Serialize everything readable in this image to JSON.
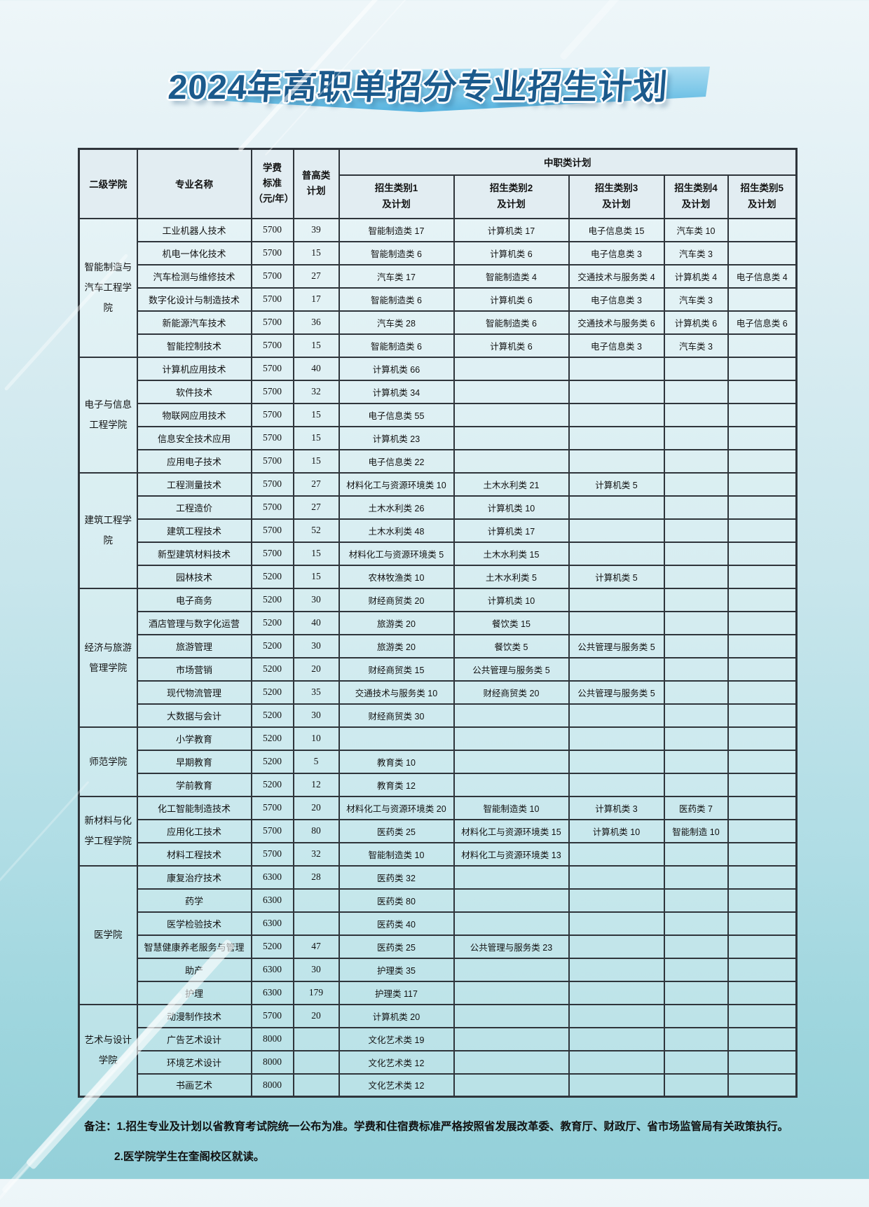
{
  "title": "2024年高职单招分专业招生计划",
  "colors": {
    "title_text": "#1b5a8c",
    "banner_top": "#a2d8ef",
    "banner_bottom": "#5cb6e0",
    "table_border": "#2f353b",
    "page_bg_top": "#eef6f9",
    "page_bg_bottom": "#94d0d9"
  },
  "table": {
    "header": {
      "college": "二级学院",
      "major": "专业名称",
      "tuition": "学费\n标准\n（元/年）",
      "general": "普高类\n计划",
      "vocational": "中职类计划",
      "categories": [
        "招生类别1\n及计划",
        "招生类别2\n及计划",
        "招生类别3\n及计划",
        "招生类别4\n及计划",
        "招生类别5\n及计划"
      ]
    },
    "colleges": [
      {
        "name": "智能制造与汽车工程学院",
        "rows": [
          {
            "major": "工业机器人技术",
            "tuition": "5700",
            "general": "39",
            "cats": [
              "智能制造类 17",
              "计算机类 17",
              "电子信息类 15",
              "汽车类 10",
              ""
            ]
          },
          {
            "major": "机电一体化技术",
            "tuition": "5700",
            "general": "15",
            "cats": [
              "智能制造类 6",
              "计算机类 6",
              "电子信息类 3",
              "汽车类 3",
              ""
            ]
          },
          {
            "major": "汽车检测与维修技术",
            "tuition": "5700",
            "general": "27",
            "cats": [
              "汽车类 17",
              "智能制造类 4",
              "交通技术与服务类 4",
              "计算机类 4",
              "电子信息类 4"
            ]
          },
          {
            "major": "数字化设计与制造技术",
            "tuition": "5700",
            "general": "17",
            "cats": [
              "智能制造类 6",
              "计算机类 6",
              "电子信息类 3",
              "汽车类 3",
              ""
            ]
          },
          {
            "major": "新能源汽车技术",
            "tuition": "5700",
            "general": "36",
            "cats": [
              "汽车类 28",
              "智能制造类 6",
              "交通技术与服务类 6",
              "计算机类 6",
              "电子信息类 6"
            ]
          },
          {
            "major": "智能控制技术",
            "tuition": "5700",
            "general": "15",
            "cats": [
              "智能制造类 6",
              "计算机类 6",
              "电子信息类 3",
              "汽车类 3",
              ""
            ]
          }
        ]
      },
      {
        "name": "电子与信息工程学院",
        "rows": [
          {
            "major": "计算机应用技术",
            "tuition": "5700",
            "general": "40",
            "cats": [
              "计算机类 66",
              "",
              "",
              "",
              ""
            ]
          },
          {
            "major": "软件技术",
            "tuition": "5700",
            "general": "32",
            "cats": [
              "计算机类 34",
              "",
              "",
              "",
              ""
            ]
          },
          {
            "major": "物联网应用技术",
            "tuition": "5700",
            "general": "15",
            "cats": [
              "电子信息类 55",
              "",
              "",
              "",
              ""
            ]
          },
          {
            "major": "信息安全技术应用",
            "tuition": "5700",
            "general": "15",
            "cats": [
              "计算机类 23",
              "",
              "",
              "",
              ""
            ]
          },
          {
            "major": "应用电子技术",
            "tuition": "5700",
            "general": "15",
            "cats": [
              "电子信息类 22",
              "",
              "",
              "",
              ""
            ]
          }
        ]
      },
      {
        "name": "建筑工程学院",
        "rows": [
          {
            "major": "工程测量技术",
            "tuition": "5700",
            "general": "27",
            "cats": [
              "材料化工与资源环境类 10",
              "土木水利类 21",
              "计算机类 5",
              "",
              ""
            ]
          },
          {
            "major": "工程造价",
            "tuition": "5700",
            "general": "27",
            "cats": [
              "土木水利类 26",
              "计算机类 10",
              "",
              "",
              ""
            ]
          },
          {
            "major": "建筑工程技术",
            "tuition": "5700",
            "general": "52",
            "cats": [
              "土木水利类 48",
              "计算机类 17",
              "",
              "",
              ""
            ]
          },
          {
            "major": "新型建筑材料技术",
            "tuition": "5700",
            "general": "15",
            "cats": [
              "材料化工与资源环境类 5",
              "土木水利类 15",
              "",
              "",
              ""
            ]
          },
          {
            "major": "园林技术",
            "tuition": "5200",
            "general": "15",
            "cats": [
              "农林牧渔类 10",
              "土木水利类 5",
              "计算机类 5",
              "",
              ""
            ]
          }
        ]
      },
      {
        "name": "经济与旅游管理学院",
        "rows": [
          {
            "major": "电子商务",
            "tuition": "5200",
            "general": "30",
            "cats": [
              "财经商贸类 20",
              "计算机类 10",
              "",
              "",
              ""
            ]
          },
          {
            "major": "酒店管理与数字化运营",
            "tuition": "5200",
            "general": "40",
            "cats": [
              "旅游类 20",
              "餐饮类 15",
              "",
              "",
              ""
            ]
          },
          {
            "major": "旅游管理",
            "tuition": "5200",
            "general": "30",
            "cats": [
              "旅游类 20",
              "餐饮类 5",
              "公共管理与服务类 5",
              "",
              ""
            ]
          },
          {
            "major": "市场营销",
            "tuition": "5200",
            "general": "20",
            "cats": [
              "财经商贸类 15",
              "公共管理与服务类 5",
              "",
              "",
              ""
            ]
          },
          {
            "major": "现代物流管理",
            "tuition": "5200",
            "general": "35",
            "cats": [
              "交通技术与服务类 10",
              "财经商贸类 20",
              "公共管理与服务类 5",
              "",
              ""
            ]
          },
          {
            "major": "大数据与会计",
            "tuition": "5200",
            "general": "30",
            "cats": [
              "财经商贸类 30",
              "",
              "",
              "",
              ""
            ]
          }
        ]
      },
      {
        "name": "师范学院",
        "rows": [
          {
            "major": "小学教育",
            "tuition": "5200",
            "general": "10",
            "cats": [
              "",
              "",
              "",
              "",
              ""
            ]
          },
          {
            "major": "早期教育",
            "tuition": "5200",
            "general": "5",
            "cats": [
              "教育类 10",
              "",
              "",
              "",
              ""
            ]
          },
          {
            "major": "学前教育",
            "tuition": "5200",
            "general": "12",
            "cats": [
              "教育类 12",
              "",
              "",
              "",
              ""
            ]
          }
        ]
      },
      {
        "name": "新材料与化学工程学院",
        "rows": [
          {
            "major": "化工智能制造技术",
            "tuition": "5700",
            "general": "20",
            "cats": [
              "材料化工与资源环境类 20",
              "智能制造类 10",
              "计算机类 3",
              "医药类 7",
              ""
            ]
          },
          {
            "major": "应用化工技术",
            "tuition": "5700",
            "general": "80",
            "cats": [
              "医药类 25",
              "材料化工与资源环境类 15",
              "计算机类 10",
              "智能制造 10",
              ""
            ]
          },
          {
            "major": "材料工程技术",
            "tuition": "5700",
            "general": "32",
            "cats": [
              "智能制造类 10",
              "材料化工与资源环境类 13",
              "",
              "",
              ""
            ]
          }
        ]
      },
      {
        "name": "医学院",
        "rows": [
          {
            "major": "康复治疗技术",
            "tuition": "6300",
            "general": "28",
            "cats": [
              "医药类 32",
              "",
              "",
              "",
              ""
            ]
          },
          {
            "major": "药学",
            "tuition": "6300",
            "general": "",
            "cats": [
              "医药类 80",
              "",
              "",
              "",
              ""
            ]
          },
          {
            "major": "医学检验技术",
            "tuition": "6300",
            "general": "",
            "cats": [
              "医药类 40",
              "",
              "",
              "",
              ""
            ]
          },
          {
            "major": "智慧健康养老服务与管理",
            "tuition": "5200",
            "general": "47",
            "cats": [
              "医药类 25",
              "公共管理与服务类 23",
              "",
              "",
              ""
            ]
          },
          {
            "major": "助产",
            "tuition": "6300",
            "general": "30",
            "cats": [
              "护理类 35",
              "",
              "",
              "",
              ""
            ]
          },
          {
            "major": "护理",
            "tuition": "6300",
            "general": "179",
            "cats": [
              "护理类 117",
              "",
              "",
              "",
              ""
            ]
          }
        ]
      },
      {
        "name": "艺术与设计学院",
        "rows": [
          {
            "major": "动漫制作技术",
            "tuition": "5700",
            "general": "20",
            "cats": [
              "计算机类 20",
              "",
              "",
              "",
              ""
            ]
          },
          {
            "major": "广告艺术设计",
            "tuition": "8000",
            "general": "",
            "cats": [
              "文化艺术类 19",
              "",
              "",
              "",
              ""
            ]
          },
          {
            "major": "环境艺术设计",
            "tuition": "8000",
            "general": "",
            "cats": [
              "文化艺术类 12",
              "",
              "",
              "",
              ""
            ]
          },
          {
            "major": "书画艺术",
            "tuition": "8000",
            "general": "",
            "cats": [
              "文化艺术类 12",
              "",
              "",
              "",
              ""
            ]
          }
        ]
      }
    ]
  },
  "notes": {
    "label": "备注：",
    "line1": "1.招生专业及计划以省教育考试院统一公布为准。学费和住宿费标准严格按照省发展改革委、教育厅、财政厅、省市场监管局有关政策执行。",
    "line2": "2.医学院学生在奎阁校区就读。"
  }
}
